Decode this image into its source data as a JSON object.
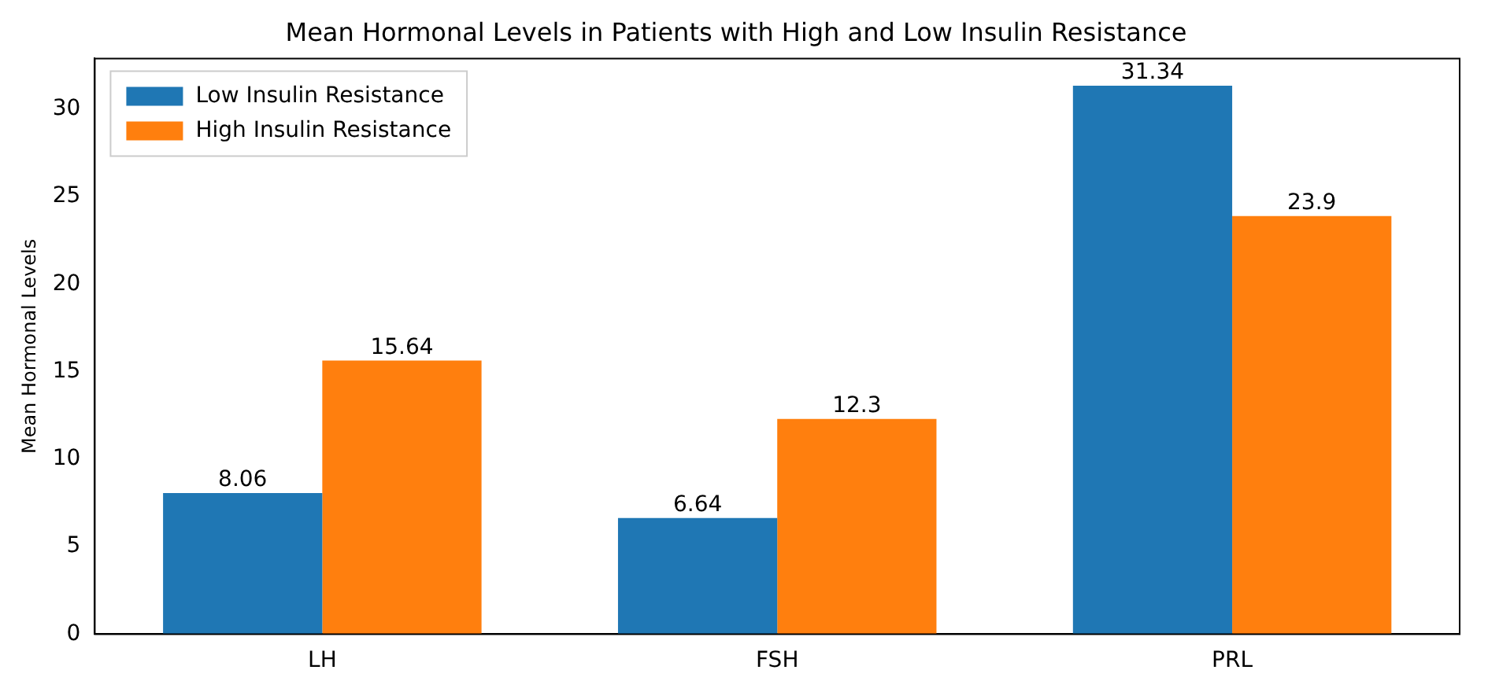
{
  "chart_data": {
    "type": "bar",
    "title": "Mean Hormonal Levels in Patients with High and Low Insulin Resistance",
    "ylabel": "Mean Hormonal Levels",
    "categories": [
      "LH",
      "FSH",
      "PRL"
    ],
    "series": [
      {
        "name": "Low Insulin Resistance",
        "color": "#1f77b4",
        "values": [
          8.06,
          6.64,
          31.34
        ]
      },
      {
        "name": "High Insulin Resistance",
        "color": "#ff7f0e",
        "values": [
          15.64,
          12.3,
          23.9
        ]
      }
    ],
    "ylim": [
      0,
      32.9
    ],
    "yticks": [
      0,
      5,
      10,
      15,
      20,
      25,
      30
    ],
    "data_labels": true,
    "legend": "top left",
    "grid": false
  }
}
